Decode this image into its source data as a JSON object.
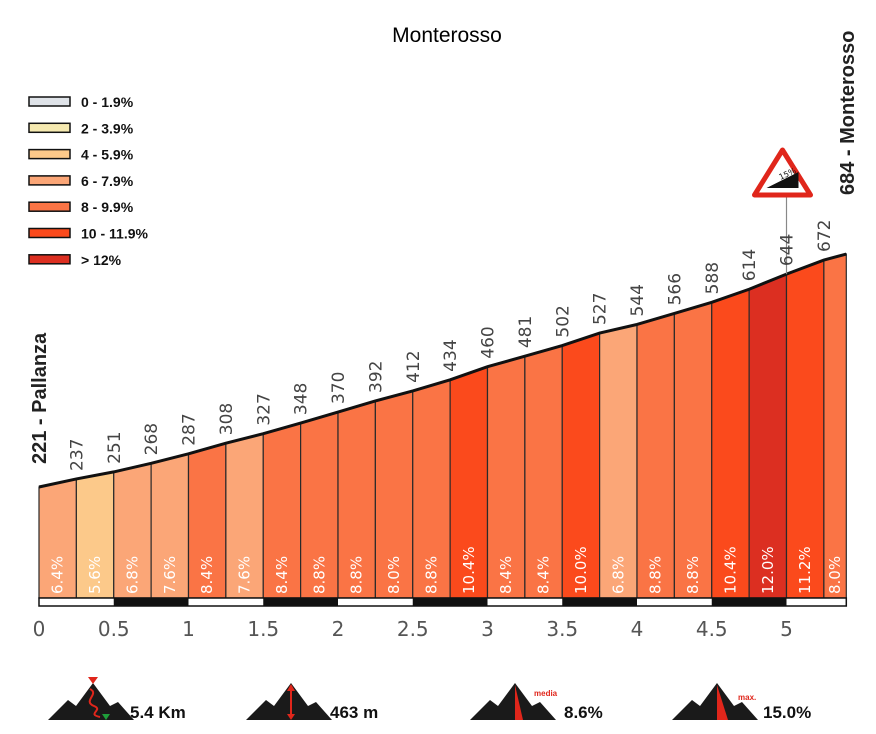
{
  "chart_data": {
    "type": "area",
    "title": "Monterosso",
    "start_label": "221 - Pallanza",
    "end_label": "684 - Monterosso",
    "x_unit": "km",
    "xlim": [
      0,
      5.4
    ],
    "x_ticks": [
      "0",
      "0.5",
      "1",
      "1.5",
      "2",
      "2.5",
      "3",
      "3.5",
      "4",
      "4.5",
      "5"
    ],
    "elevations": [
      221,
      237,
      251,
      268,
      287,
      308,
      327,
      348,
      370,
      392,
      412,
      434,
      460,
      481,
      502,
      527,
      544,
      566,
      588,
      614,
      644,
      672,
      684
    ],
    "elevation_labels": [
      "221",
      "237",
      "251",
      "268",
      "287",
      "308",
      "327",
      "348",
      "370",
      "392",
      "412",
      "434",
      "460",
      "481",
      "502",
      "527",
      "544",
      "566",
      "588",
      "614",
      "644",
      "672",
      "684"
    ],
    "segment_grades": [
      6.4,
      5.6,
      6.8,
      7.6,
      8.4,
      7.6,
      8.4,
      8.8,
      8.8,
      8.0,
      8.8,
      10.4,
      8.4,
      8.4,
      10.0,
      6.8,
      8.8,
      8.8,
      10.4,
      12.0,
      11.2,
      8.0
    ],
    "segment_labels": [
      "6.4%",
      "5.6%",
      "6.8%",
      "7.6%",
      "8.4%",
      "7.6%",
      "8.4%",
      "8.8%",
      "8.8%",
      "8.0%",
      "8.8%",
      "10.4%",
      "8.4%",
      "8.4%",
      "10.0%",
      "6.8%",
      "8.8%",
      "8.8%",
      "10.4%",
      "12.0%",
      "11.2%",
      "8.0%"
    ],
    "legend": [
      {
        "label": "0 - 1.9%",
        "color": "#dfe3e8"
      },
      {
        "label": "2 - 3.9%",
        "color": "#f5e9b0"
      },
      {
        "label": "4 - 5.9%",
        "color": "#fcc98a"
      },
      {
        "label": "6 - 7.9%",
        "color": "#fba677"
      },
      {
        "label": "8 - 9.9%",
        "color": "#fa7445"
      },
      {
        "label": "10 - 11.9%",
        "color": "#fb4a1c"
      },
      {
        "label": "> 12%",
        "color": "#dc2f21"
      }
    ],
    "legend_placement": "top-left",
    "max_grade_sign": "15%"
  },
  "stats": {
    "distance": "5.4 Km",
    "elevation_gain": "463 m",
    "avg_label": "media",
    "avg_grade": "8.6%",
    "max_label": "max.",
    "max_grade": "15.0%"
  }
}
